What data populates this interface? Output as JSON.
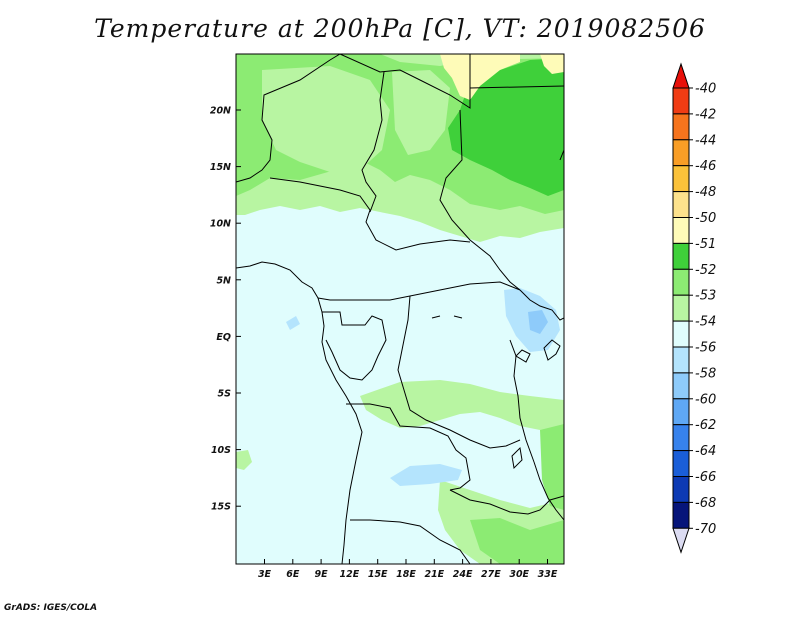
{
  "title": "Temperature at 200hPa [C], VT: 2019082506",
  "footer": "GrADS: IGES/COLA",
  "map": {
    "lon_labels": [
      "3E",
      "6E",
      "9E",
      "12E",
      "15E",
      "18E",
      "21E",
      "24E",
      "27E",
      "30E",
      "33E"
    ],
    "lat_labels": [
      "20N",
      "15N",
      "10N",
      "5N",
      "EQ",
      "5S",
      "10S",
      "15S"
    ]
  },
  "colorbar": {
    "levels": [
      {
        "label": "-40",
        "color": "#e8100a"
      },
      {
        "label": "-42",
        "color": "#f03c14"
      },
      {
        "label": "-44",
        "color": "#f6741d"
      },
      {
        "label": "-46",
        "color": "#f99e26"
      },
      {
        "label": "-48",
        "color": "#fbc23a"
      },
      {
        "label": "-50",
        "color": "#fde28c"
      },
      {
        "label": "-51",
        "color": "#fefbb8"
      },
      {
        "label": "-52",
        "color": "#3fd03a"
      },
      {
        "label": "-53",
        "color": "#8ceb73"
      },
      {
        "label": "-54",
        "color": "#b8f5a2"
      },
      {
        "label": "-56",
        "color": "#e0fdfd"
      },
      {
        "label": "-58",
        "color": "#b4e4fd"
      },
      {
        "label": "-60",
        "color": "#8ecbfa"
      },
      {
        "label": "-62",
        "color": "#5fa8f5"
      },
      {
        "label": "-64",
        "color": "#3782ec"
      },
      {
        "label": "-66",
        "color": "#1a5ed8"
      },
      {
        "label": "-68",
        "color": "#0d3ab4"
      },
      {
        "label": "-70",
        "color": "#06157a"
      }
    ],
    "under_color": "#dcdcf2"
  }
}
